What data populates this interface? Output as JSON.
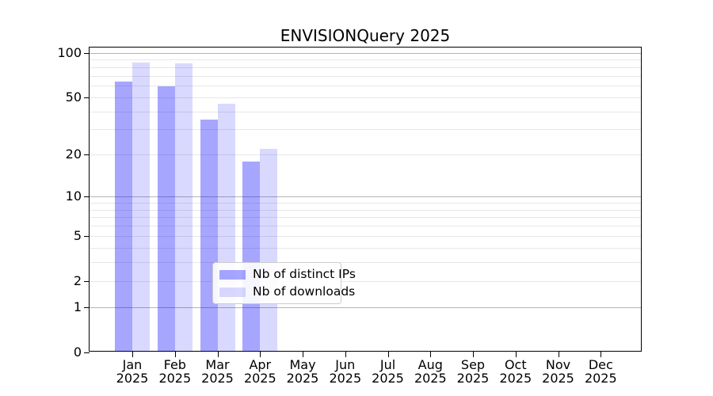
{
  "title": "ENVISIONQuery 2025",
  "chart_data": {
    "type": "bar",
    "title": "ENVISIONQuery 2025",
    "categories": [
      "Jan",
      "Feb",
      "Mar",
      "Apr",
      "May",
      "Jun",
      "Jul",
      "Aug",
      "Sep",
      "Oct",
      "Nov",
      "Dec"
    ],
    "x_year_label": "2025",
    "series": [
      {
        "name": "Nb of distinct IPs",
        "color_hex": "#a6a6f4",
        "color_rgba": "rgba(0,0,255,0.35)",
        "values": [
          64,
          59,
          35,
          18,
          null,
          null,
          null,
          null,
          null,
          null,
          null,
          null
        ]
      },
      {
        "name": "Nb of downloads",
        "color_hex": "#d9d9f8",
        "color_rgba": "rgba(0,0,255,0.15)",
        "values": [
          86,
          85,
          45,
          22,
          null,
          null,
          null,
          null,
          null,
          null,
          null,
          null
        ]
      }
    ],
    "yscale": "log1p",
    "ylim": [
      0,
      108
    ],
    "yticks": [
      100,
      50,
      20,
      10,
      5,
      2,
      1,
      0
    ],
    "grid_major": [
      1,
      10,
      100
    ],
    "grid_minor": [
      2,
      3,
      4,
      5,
      6,
      7,
      8,
      9,
      20,
      30,
      40,
      50,
      60,
      70,
      80,
      90
    ],
    "grid": "on",
    "legend_position": "lower center",
    "xlabel": "",
    "ylabel": ""
  },
  "legend": {
    "items": [
      {
        "label": "Nb of distinct IPs"
      },
      {
        "label": "Nb of downloads"
      }
    ]
  }
}
